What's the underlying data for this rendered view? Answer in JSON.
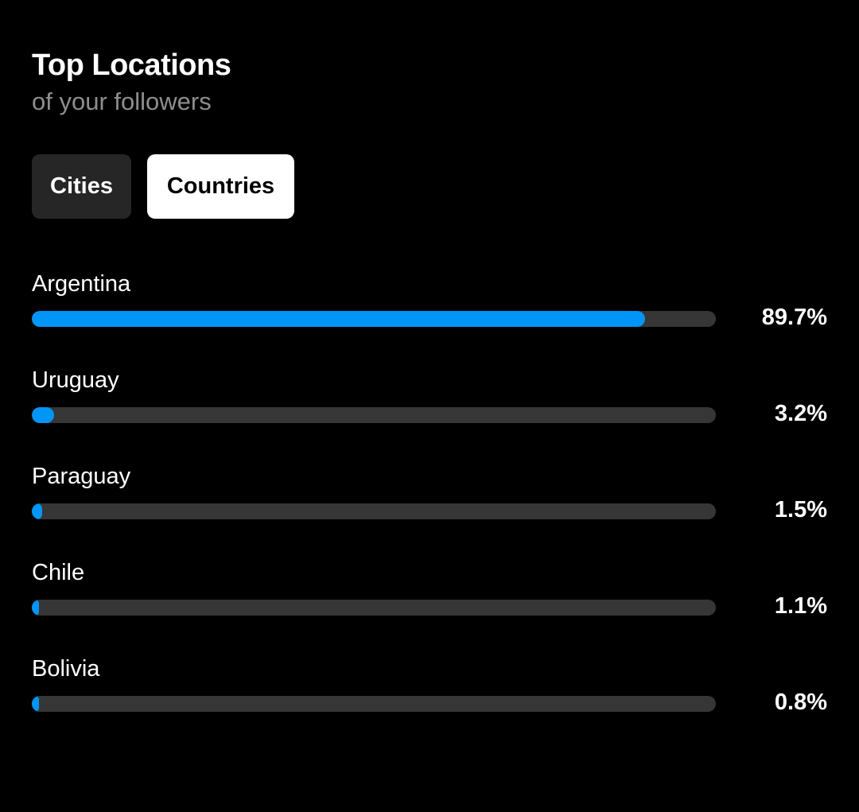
{
  "header": {
    "title": "Top Locations",
    "subtitle": "of your followers"
  },
  "tabs": [
    {
      "label": "Cities",
      "active": false
    },
    {
      "label": "Countries",
      "active": true
    }
  ],
  "colors": {
    "accent": "#0095f6",
    "track": "#363636",
    "inactive_tab": "#262626",
    "active_tab": "#ffffff",
    "subtitle": "#8e8e8e"
  },
  "locations": [
    {
      "name": "Argentina",
      "percent_label": "89.7%",
      "percent": 89.7
    },
    {
      "name": "Uruguay",
      "percent_label": "3.2%",
      "percent": 3.2
    },
    {
      "name": "Paraguay",
      "percent_label": "1.5%",
      "percent": 1.5
    },
    {
      "name": "Chile",
      "percent_label": "1.1%",
      "percent": 1.1
    },
    {
      "name": "Bolivia",
      "percent_label": "0.8%",
      "percent": 0.8
    }
  ]
}
